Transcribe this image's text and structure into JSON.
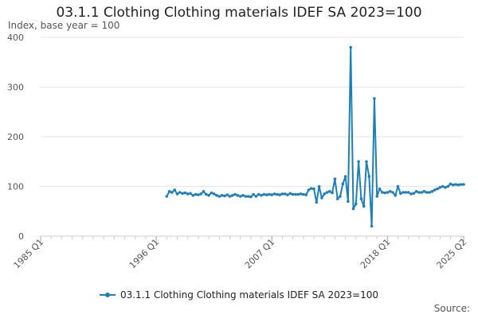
{
  "colors": {
    "series": "#1f7fb6",
    "grid": "#e6e6e6",
    "axis": "#cccccc"
  },
  "source_label": "Source:",
  "chart_data": {
    "type": "line",
    "title": "03.1.1 Clothing Clothing materials IDEF SA 2023=100",
    "ylabel": "Index, base year = 100",
    "xlabel": "",
    "ylim": [
      0,
      400
    ],
    "yticks": [
      0,
      100,
      200,
      300,
      400
    ],
    "xlim": [
      "1985 Q1",
      "2025 Q2"
    ],
    "xticks": [
      "1985 Q1",
      "1996 Q1",
      "2007 Q1",
      "2018 Q1",
      "2025 Q2"
    ],
    "grid": true,
    "legend": "bottom-center",
    "series": [
      {
        "name": "03.1.1 Clothing Clothing materials IDEF SA 2023=100",
        "x": [
          "1997 Q1",
          "1997 Q2",
          "1997 Q3",
          "1997 Q4",
          "1998 Q1",
          "1998 Q2",
          "1998 Q3",
          "1998 Q4",
          "1999 Q1",
          "1999 Q2",
          "1999 Q3",
          "1999 Q4",
          "2000 Q1",
          "2000 Q2",
          "2000 Q3",
          "2000 Q4",
          "2001 Q1",
          "2001 Q2",
          "2001 Q3",
          "2001 Q4",
          "2002 Q1",
          "2002 Q2",
          "2002 Q3",
          "2002 Q4",
          "2003 Q1",
          "2003 Q2",
          "2003 Q3",
          "2003 Q4",
          "2004 Q1",
          "2004 Q2",
          "2004 Q3",
          "2004 Q4",
          "2005 Q1",
          "2005 Q2",
          "2005 Q3",
          "2005 Q4",
          "2006 Q1",
          "2006 Q2",
          "2006 Q3",
          "2006 Q4",
          "2007 Q1",
          "2007 Q2",
          "2007 Q3",
          "2007 Q4",
          "2008 Q1",
          "2008 Q2",
          "2008 Q3",
          "2008 Q4",
          "2009 Q1",
          "2009 Q2",
          "2009 Q3",
          "2009 Q4",
          "2010 Q1",
          "2010 Q2",
          "2010 Q3",
          "2010 Q4",
          "2011 Q1",
          "2011 Q2",
          "2011 Q3",
          "2011 Q4",
          "2012 Q1",
          "2012 Q2",
          "2012 Q3",
          "2012 Q4",
          "2013 Q1",
          "2013 Q2",
          "2013 Q3",
          "2013 Q4",
          "2014 Q1",
          "2014 Q2",
          "2014 Q3",
          "2014 Q4",
          "2015 Q1",
          "2015 Q2",
          "2015 Q3",
          "2015 Q4",
          "2016 Q1",
          "2016 Q2",
          "2016 Q3",
          "2016 Q4",
          "2017 Q1",
          "2017 Q2",
          "2017 Q3",
          "2017 Q4",
          "2018 Q1",
          "2018 Q2",
          "2018 Q3",
          "2018 Q4",
          "2019 Q1",
          "2019 Q2",
          "2019 Q3",
          "2019 Q4",
          "2020 Q1",
          "2020 Q2",
          "2020 Q3",
          "2020 Q4",
          "2021 Q1",
          "2021 Q2",
          "2021 Q3",
          "2021 Q4",
          "2022 Q1",
          "2022 Q2",
          "2022 Q3",
          "2022 Q4",
          "2023 Q1",
          "2023 Q2",
          "2023 Q3",
          "2023 Q4",
          "2024 Q1",
          "2024 Q2",
          "2024 Q3",
          "2024 Q4",
          "2025 Q1",
          "2025 Q2"
        ],
        "values": [
          80,
          90,
          88,
          93,
          85,
          88,
          86,
          87,
          85,
          86,
          82,
          84,
          83,
          85,
          90,
          84,
          82,
          87,
          85,
          82,
          80,
          82,
          81,
          83,
          80,
          82,
          84,
          82,
          80,
          82,
          80,
          80,
          79,
          84,
          80,
          84,
          82,
          84,
          83,
          84,
          83,
          85,
          84,
          83,
          85,
          85,
          83,
          86,
          84,
          84,
          84,
          85,
          84,
          83,
          93,
          96,
          95,
          68,
          100,
          77,
          85,
          88,
          90,
          87,
          115,
          75,
          80,
          105,
          120,
          70,
          380,
          55,
          65,
          150,
          75,
          60,
          150,
          120,
          20,
          277,
          80,
          95,
          88,
          87,
          88,
          90,
          88,
          82,
          100,
          86,
          88,
          88,
          88,
          85,
          86,
          90,
          88,
          88,
          90,
          88,
          88,
          90,
          93,
          95,
          98,
          100,
          98,
          100,
          105,
          103,
          104,
          103,
          104,
          104
        ]
      }
    ]
  }
}
